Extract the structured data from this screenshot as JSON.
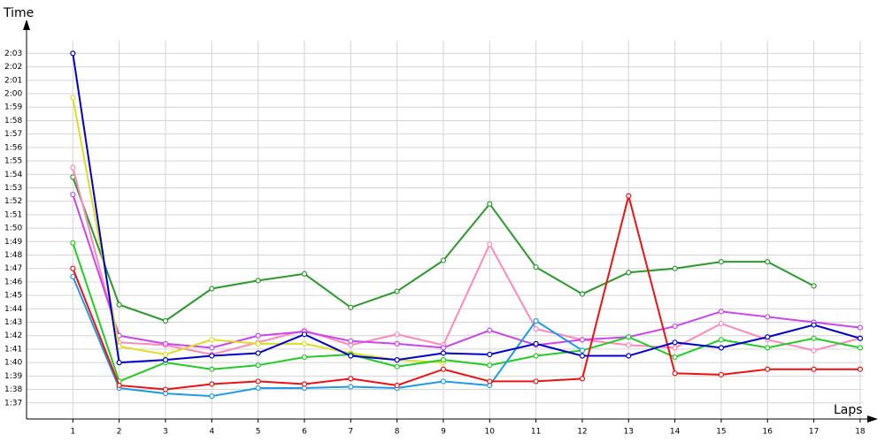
{
  "chart_data": {
    "type": "line",
    "xlabel": "Laps",
    "ylabel": "Time",
    "x": [
      1,
      2,
      3,
      4,
      5,
      6,
      7,
      8,
      9,
      10,
      11,
      12,
      13,
      14,
      15,
      16,
      17,
      18
    ],
    "xlim": [
      0,
      18.25
    ],
    "xticks": [
      1,
      2,
      3,
      4,
      5,
      6,
      7,
      8,
      9,
      10,
      11,
      12,
      13,
      14,
      15,
      16,
      17,
      18
    ],
    "ylim": [
      95.8,
      125
    ],
    "yticks": [
      {
        "value": 97,
        "label": "1:37"
      },
      {
        "value": 98,
        "label": "1:38"
      },
      {
        "value": 99,
        "label": "1:39"
      },
      {
        "value": 100,
        "label": "1:40"
      },
      {
        "value": 101,
        "label": "1:41"
      },
      {
        "value": 102,
        "label": "1:42"
      },
      {
        "value": 103,
        "label": "1:43"
      },
      {
        "value": 104,
        "label": "1:44"
      },
      {
        "value": 105,
        "label": "1:45"
      },
      {
        "value": 106,
        "label": "1:46"
      },
      {
        "value": 107,
        "label": "1:47"
      },
      {
        "value": 108,
        "label": "1:48"
      },
      {
        "value": 109,
        "label": "1:49"
      },
      {
        "value": 110,
        "label": "1:50"
      },
      {
        "value": 111,
        "label": "1:51"
      },
      {
        "value": 112,
        "label": "1:52"
      },
      {
        "value": 113,
        "label": "1:53"
      },
      {
        "value": 114,
        "label": "1:54"
      },
      {
        "value": 115,
        "label": "1:55"
      },
      {
        "value": 116,
        "label": "1:56"
      },
      {
        "value": 117,
        "label": "1:57"
      },
      {
        "value": 118,
        "label": "1:58"
      },
      {
        "value": 119,
        "label": "1:59"
      },
      {
        "value": 120,
        "label": "2:00"
      },
      {
        "value": 121,
        "label": "2:01"
      },
      {
        "value": 122,
        "label": "2:02"
      },
      {
        "value": 123,
        "label": "2:03"
      }
    ],
    "grid": true,
    "series": [
      {
        "color": "#2a9a2a",
        "values": [
          113.8,
          104.3,
          103.1,
          105.5,
          106.1,
          106.6,
          104.1,
          105.3,
          107.6,
          111.8,
          107.1,
          105.1,
          106.7,
          107.0,
          107.5,
          107.5,
          105.7,
          null
        ]
      },
      {
        "color": "#ff88bb",
        "values": [
          114.5,
          101.5,
          101.3,
          100.6,
          101.5,
          102.4,
          101.3,
          102.1,
          101.3,
          108.8,
          102.5,
          101.7,
          101.3,
          101.1,
          102.9,
          101.7,
          100.9,
          101.8
        ]
      },
      {
        "color": "#cc44ee",
        "values": [
          112.5,
          102.0,
          101.4,
          101.1,
          102.0,
          102.3,
          101.6,
          101.4,
          101.1,
          102.4,
          101.3,
          101.7,
          101.9,
          102.7,
          103.8,
          103.4,
          103.0,
          102.6
        ]
      },
      {
        "color": "#dddd22",
        "values": [
          119.7,
          101.2,
          100.6,
          101.7,
          101.4,
          101.4,
          100.7,
          100.2,
          100.0,
          null,
          null,
          null,
          null,
          null,
          null,
          null,
          null,
          null
        ]
      },
      {
        "color": "#22cc22",
        "values": [
          108.9,
          98.6,
          100.0,
          99.5,
          99.8,
          100.4,
          100.6,
          99.7,
          100.2,
          99.8,
          100.5,
          100.9,
          101.9,
          100.4,
          101.7,
          101.1,
          101.8,
          101.1
        ]
      },
      {
        "color": "#1e9be8",
        "values": [
          106.4,
          98.1,
          97.7,
          97.5,
          98.1,
          98.1,
          98.2,
          98.1,
          98.6,
          98.3,
          103.1,
          100.9,
          null,
          null,
          null,
          null,
          null,
          null
        ]
      },
      {
        "color": "#ee1111",
        "values": [
          107.0,
          98.3,
          98.0,
          98.4,
          98.6,
          98.4,
          98.8,
          98.3,
          99.5,
          98.6,
          98.6,
          98.8,
          112.4,
          99.2,
          99.1,
          99.5,
          99.5,
          99.5
        ]
      },
      {
        "color": "#0000cc",
        "values": [
          123.0,
          100.0,
          100.2,
          100.5,
          100.7,
          102.1,
          100.5,
          100.2,
          100.7,
          100.6,
          101.4,
          100.5,
          100.5,
          101.5,
          101.1,
          101.9,
          102.8,
          101.8
        ]
      }
    ]
  }
}
